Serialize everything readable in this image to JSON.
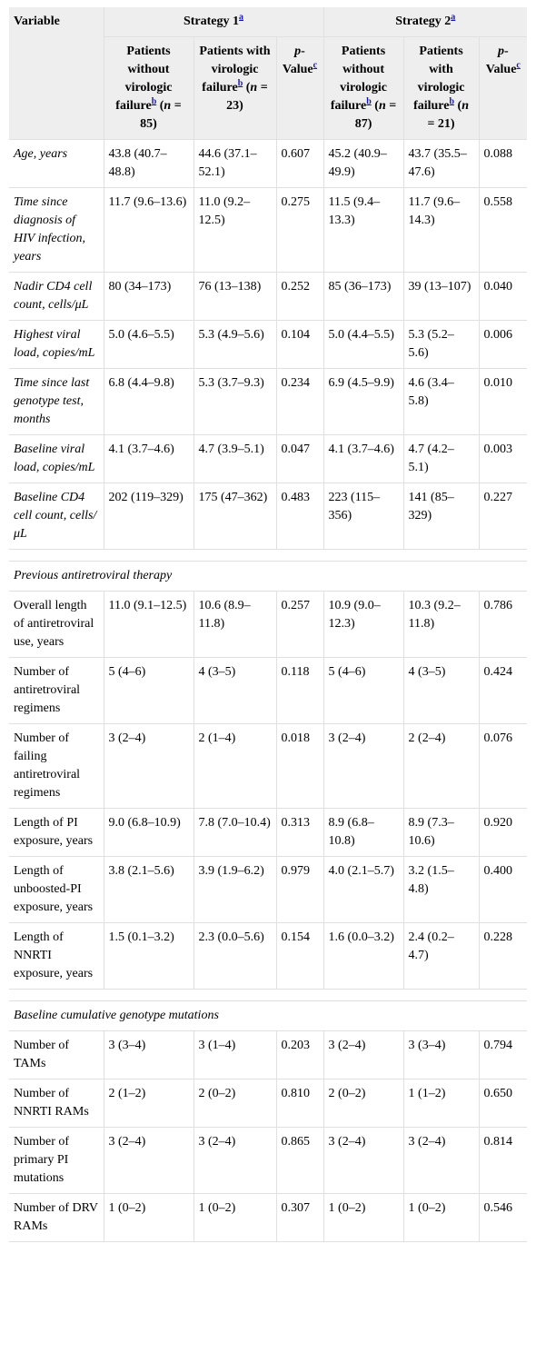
{
  "header": {
    "variable": "Variable",
    "strategy1": "Strategy 1",
    "strategy2": "Strategy 2",
    "sup_a": "a",
    "sup_b": "b",
    "sup_c": "c",
    "s1_without": {
      "pre": "Patients without virologic failure",
      "post": " (",
      "n": "n",
      "rest": " = 85)"
    },
    "s1_with": {
      "pre": "Patients with virologic failure",
      "post": " (",
      "n": "n",
      "rest": " = 23)"
    },
    "s2_without": {
      "pre": "Patients without virologic failure",
      "post": " (",
      "n": "n",
      "rest": " = 87)"
    },
    "s2_with": {
      "pre": "Patients with virologic failure",
      "post": " (",
      "n": "n",
      "rest": " = 21)"
    },
    "pval_p": "p",
    "pval_rest": "-Value"
  },
  "rows": [
    {
      "label": "Age, years",
      "v": [
        "43.8 (40.7–48.8)",
        "44.6 (37.1–52.1)",
        "0.607",
        "45.2 (40.9–49.9)",
        "43.7 (35.5–47.6)",
        "0.088"
      ]
    },
    {
      "label": "Time since diagnosis of HIV infection, years",
      "v": [
        "11.7 (9.6–13.6)",
        "11.0 (9.2–12.5)",
        "0.275",
        "11.5 (9.4–13.3)",
        "11.7 (9.6–14.3)",
        "0.558"
      ]
    },
    {
      "label": "Nadir CD4 cell count, cells/μL",
      "v": [
        "80 (34–173)",
        "76 (13–138)",
        "0.252",
        "85 (36–173)",
        "39 (13–107)",
        "0.040"
      ]
    },
    {
      "label": "Highest viral load, copies/mL",
      "v": [
        "5.0 (4.6–5.5)",
        "5.3 (4.9–5.6)",
        "0.104",
        "5.0 (4.4–5.5)",
        "5.3 (5.2–5.6)",
        "0.006"
      ]
    },
    {
      "label": "Time since last genotype test, months",
      "v": [
        "6.8 (4.4–9.8)",
        "5.3 (3.7–9.3)",
        "0.234",
        "6.9 (4.5–9.9)",
        "4.6 (3.4–5.8)",
        "0.010"
      ]
    },
    {
      "label": "Baseline viral load, copies/mL",
      "v": [
        "4.1 (3.7–4.6)",
        "4.7 (3.9–5.1)",
        "0.047",
        "4.1 (3.7–4.6)",
        "4.7 (4.2–5.1)",
        "0.003"
      ]
    },
    {
      "label": "Baseline CD4 cell count, cells/μL",
      "v": [
        "202 (119–329)",
        "175 (47–362)",
        "0.483",
        "223 (115–356)",
        "141 (85–329)",
        "0.227"
      ]
    }
  ],
  "section_art": {
    "title": "Previous antiretroviral therapy",
    "rows": [
      {
        "label": "Overall length of antiretroviral use, years",
        "v": [
          "11.0 (9.1–12.5)",
          "10.6 (8.9–11.8)",
          "0.257",
          "10.9 (9.0–12.3)",
          "10.3 (9.2–11.8)",
          "0.786"
        ]
      },
      {
        "label": "Number of antiretroviral regimens",
        "v": [
          "5 (4–6)",
          "4 (3–5)",
          "0.118",
          "5 (4–6)",
          "4 (3–5)",
          "0.424"
        ]
      },
      {
        "label": "Number of failing antiretroviral regimens",
        "v": [
          "3 (2–4)",
          "2 (1–4)",
          "0.018",
          "3 (2–4)",
          "2 (2–4)",
          "0.076"
        ]
      },
      {
        "label": "Length of PI exposure, years",
        "v": [
          "9.0 (6.8–10.9)",
          "7.8 (7.0–10.4)",
          "0.313",
          "8.9 (6.8–10.8)",
          "8.9 (7.3–10.6)",
          "0.920"
        ]
      },
      {
        "label": "Length of unboosted-PI exposure, years",
        "v": [
          "3.8 (2.1–5.6)",
          "3.9 (1.9–6.2)",
          "0.979",
          "4.0 (2.1–5.7)",
          "3.2 (1.5–4.8)",
          "0.400"
        ]
      },
      {
        "label": "Length of NNRTI exposure, years",
        "v": [
          "1.5 (0.1–3.2)",
          "2.3 (0.0–5.6)",
          "0.154",
          "1.6 (0.0–3.2)",
          "2.4 (0.2–4.7)",
          "0.228"
        ]
      }
    ]
  },
  "section_geno": {
    "title": "Baseline cumulative genotype mutations",
    "rows": [
      {
        "label": "Number of TAMs",
        "v": [
          "3 (3–4)",
          "3 (1–4)",
          "0.203",
          "3 (2–4)",
          "3 (3–4)",
          "0.794"
        ]
      },
      {
        "label": "Number of NNRTI RAMs",
        "v": [
          "2 (1–2)",
          "2 (0–2)",
          "0.810",
          "2 (0–2)",
          "1 (1–2)",
          "0.650"
        ]
      },
      {
        "label": "Number of primary PI mutations",
        "v": [
          "3 (2–4)",
          "3 (2–4)",
          "0.865",
          "3 (2–4)",
          "3 (2–4)",
          "0.814"
        ]
      },
      {
        "label": "Number of DRV RAMs",
        "v": [
          "1 (0–2)",
          "1 (0–2)",
          "0.307",
          "1 (0–2)",
          "1 (0–2)",
          "0.546"
        ]
      }
    ]
  }
}
